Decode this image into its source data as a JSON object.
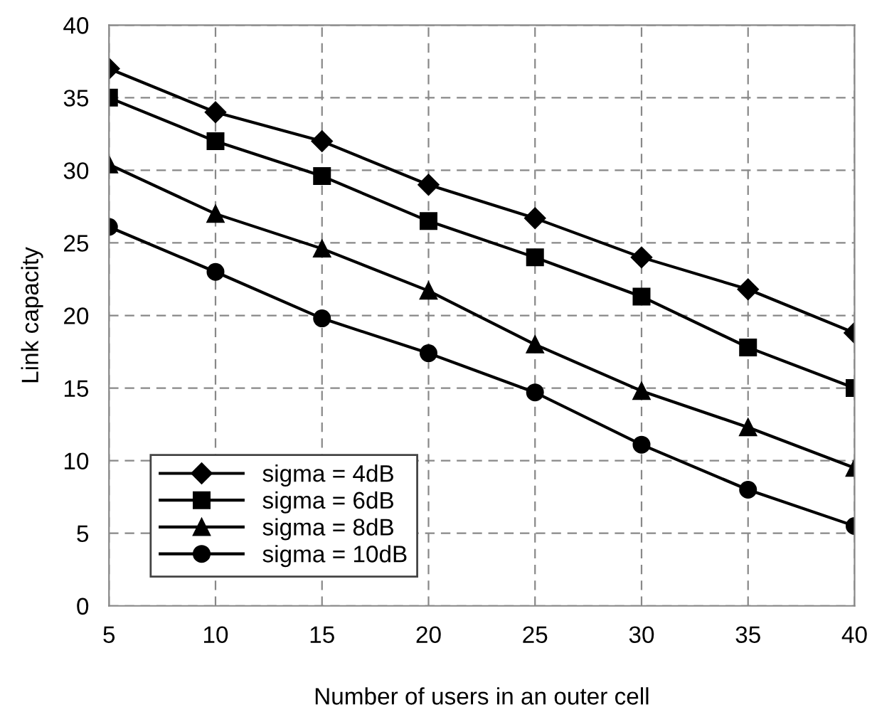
{
  "chart_data": {
    "type": "line",
    "xlabel": "Number of users in an outer cell",
    "ylabel": "Link capacity",
    "x": [
      5,
      10,
      15,
      20,
      25,
      30,
      35,
      40
    ],
    "series": [
      {
        "name": "sigma = 4dB",
        "color": "#000000",
        "marker": "diamond",
        "values": [
          37,
          34,
          32,
          29,
          26.7,
          24,
          21.8,
          18.8
        ]
      },
      {
        "name": "sigma = 6dB",
        "color": "#000000",
        "marker": "square",
        "values": [
          35,
          32,
          29.6,
          26.5,
          24,
          21.3,
          17.8,
          15
        ]
      },
      {
        "name": "sigma = 8dB",
        "color": "#000000",
        "marker": "triangle",
        "values": [
          30.4,
          27,
          24.6,
          21.7,
          18,
          14.8,
          12.3,
          9.5
        ]
      },
      {
        "name": "sigma = 10dB",
        "color": "#000000",
        "marker": "circle",
        "values": [
          26.1,
          23,
          19.8,
          17.4,
          14.7,
          11.1,
          8,
          5.5
        ]
      }
    ],
    "xlim": [
      5,
      40
    ],
    "xticks": [
      5,
      10,
      15,
      20,
      25,
      30,
      35,
      40
    ],
    "ylim": [
      0,
      40
    ],
    "yticks": [
      0,
      5,
      10,
      15,
      20,
      25,
      30,
      35,
      40
    ],
    "grid": true,
    "legend": "bottom left",
    "line_style": "solid"
  }
}
